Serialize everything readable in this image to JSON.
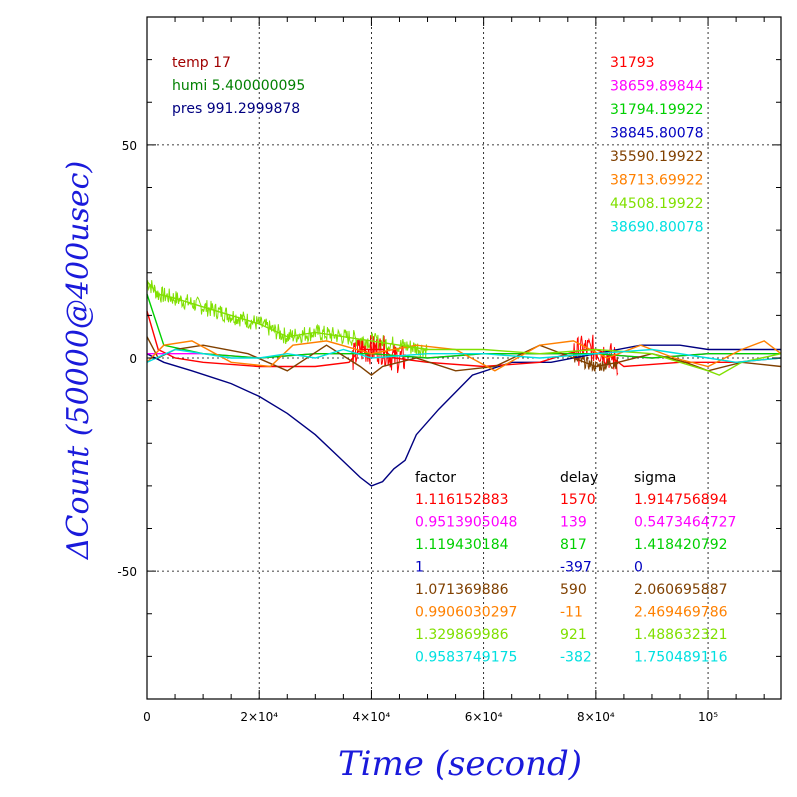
{
  "chart_data": {
    "type": "line",
    "xlabel": "Time (second)",
    "ylabel": "ΔCount (50000@400usec)",
    "xlim": [
      0,
      113000
    ],
    "ylim": [
      -80,
      80
    ],
    "x_ticks": [
      {
        "value": 0,
        "label": "0"
      },
      {
        "value": 20000,
        "label": "2×10⁴"
      },
      {
        "value": 40000,
        "label": "4×10⁴"
      },
      {
        "value": 60000,
        "label": "6×10⁴"
      },
      {
        "value": 80000,
        "label": "8×10⁴"
      },
      {
        "value": 100000,
        "label": "10⁵"
      }
    ],
    "y_ticks": [
      {
        "value": 50,
        "label": "50"
      },
      {
        "value": 0,
        "label": "0"
      },
      {
        "value": -50,
        "label": "-50"
      }
    ],
    "grid": true,
    "env_info": [
      {
        "text": "temp 17",
        "color": "#a00000"
      },
      {
        "text": "humi 5.400000095",
        "color": "#008000"
      },
      {
        "text": "pres 991.2999878",
        "color": "#000080"
      }
    ],
    "legend_values": [
      {
        "text": "31793",
        "color": "#ff0000"
      },
      {
        "text": "38659.89844",
        "color": "#ff00ff"
      },
      {
        "text": "31794.19922",
        "color": "#00d000"
      },
      {
        "text": "38845.80078",
        "color": "#0000c0"
      },
      {
        "text": "35590.19922",
        "color": "#804000"
      },
      {
        "text": "38713.69922",
        "color": "#ff8000"
      },
      {
        "text": "44508.19922",
        "color": "#80e000"
      },
      {
        "text": "38690.80078",
        "color": "#00e0e0"
      }
    ],
    "table": {
      "headers": [
        "factor",
        "delay",
        "sigma"
      ],
      "rows": [
        {
          "factor": "1.116152883",
          "delay": "1570",
          "sigma": "1.914756894",
          "color": "#ff0000"
        },
        {
          "factor": "0.9513905048",
          "delay": "139",
          "sigma": "0.5473464727",
          "color": "#ff00ff"
        },
        {
          "factor": "1.119430184",
          "delay": "817",
          "sigma": "1.418420792",
          "color": "#00d000"
        },
        {
          "factor": "1",
          "delay": "-397",
          "sigma": "0",
          "color": "#0000c0"
        },
        {
          "factor": "1.071369886",
          "delay": "590",
          "sigma": "2.060695887",
          "color": "#804000"
        },
        {
          "factor": "0.9906030297",
          "delay": "-11",
          "sigma": "2.469469786",
          "color": "#ff8000"
        },
        {
          "factor": "1.329869986",
          "delay": "921",
          "sigma": "1.488632321",
          "color": "#80e000"
        },
        {
          "factor": "0.9583749175",
          "delay": "-382",
          "sigma": "1.750489116",
          "color": "#00e0e0"
        }
      ]
    },
    "series": [
      {
        "color": "#000080",
        "x": [
          0,
          3000,
          8000,
          15000,
          20000,
          25000,
          30000,
          34000,
          38000,
          40000,
          42000,
          44000,
          46000,
          48000,
          52000,
          58000,
          65000,
          72000,
          80000,
          88000,
          95000,
          100000,
          108000,
          113000
        ],
        "y": [
          1,
          -1,
          -3,
          -6,
          -9,
          -13,
          -18,
          -23,
          -28,
          -30,
          -29,
          -26,
          -24,
          -18,
          -12,
          -4,
          -1,
          -1,
          1,
          3,
          3,
          2,
          2,
          2
        ]
      },
      {
        "color": "#ff0000",
        "x": [
          0,
          2000,
          5000,
          10000,
          20000,
          30000,
          36000,
          38000,
          42000,
          44000,
          50000,
          60000,
          70000,
          75000,
          78000,
          80000,
          82000,
          85000,
          95000,
          105000,
          113000
        ],
        "y": [
          11,
          2,
          0,
          -1,
          -2,
          -2,
          -1,
          2,
          2,
          0,
          -1,
          -2,
          -1,
          1,
          2,
          2,
          1,
          -2,
          -1,
          -1,
          0
        ]
      },
      {
        "color": "#ff00ff",
        "x": [
          0,
          10000,
          20000,
          30000,
          40000,
          50000,
          60000,
          70000,
          80000,
          90000,
          100000,
          113000
        ],
        "y": [
          1,
          1,
          0,
          1,
          1,
          0,
          1,
          1,
          1,
          0,
          1,
          1
        ]
      },
      {
        "color": "#00d000",
        "x": [
          0,
          3000,
          10000,
          20000,
          30000,
          40000,
          50000,
          60000,
          70000,
          80000,
          90000,
          100000,
          113000
        ],
        "y": [
          15,
          3,
          1,
          0,
          1,
          1,
          0,
          1,
          1,
          1,
          0,
          1,
          1
        ]
      },
      {
        "color": "#804000",
        "x": [
          0,
          2000,
          5000,
          10000,
          18000,
          25000,
          32000,
          38000,
          40000,
          42000,
          48000,
          55000,
          62000,
          70000,
          76000,
          80000,
          84000,
          90000,
          96000,
          100000,
          106000,
          113000
        ],
        "y": [
          5,
          0,
          2,
          3,
          1,
          -3,
          3,
          -2,
          -4,
          -2,
          0,
          -3,
          -2,
          3,
          0,
          -2,
          -1,
          1,
          -1,
          -3,
          -1,
          -2
        ]
      },
      {
        "color": "#ff8000",
        "x": [
          0,
          3000,
          8000,
          15000,
          22000,
          26000,
          32000,
          40000,
          48000,
          55000,
          62000,
          70000,
          76000,
          82000,
          88000,
          94000,
          100000,
          106000,
          110000,
          113000
        ],
        "y": [
          -1,
          3,
          4,
          -1,
          -2,
          3,
          4,
          1,
          3,
          2,
          -3,
          3,
          4,
          0,
          3,
          0,
          -2,
          2,
          4,
          1
        ]
      },
      {
        "color": "#80e000",
        "x": [
          0,
          2000,
          5000,
          10000,
          15000,
          20000,
          25000,
          30000,
          35000,
          40000,
          45000,
          50000,
          60000,
          70000,
          80000,
          90000,
          95000,
          100000,
          102000,
          106000,
          113000
        ],
        "y": [
          18,
          15,
          14,
          12,
          10,
          8,
          5,
          6,
          5,
          4,
          3,
          2,
          2,
          1,
          2,
          1,
          -1,
          -3,
          -4,
          -1,
          1
        ]
      },
      {
        "color": "#00e0e0",
        "x": [
          0,
          5000,
          10000,
          15000,
          20000,
          25000,
          30000,
          35000,
          40000,
          50000,
          60000,
          70000,
          80000,
          90000,
          100000,
          105000,
          113000
        ],
        "y": [
          -1,
          2,
          1,
          0,
          0,
          1,
          0,
          2,
          0,
          1,
          1,
          0,
          1,
          2,
          0,
          -1,
          0
        ]
      }
    ],
    "noise_bands": [
      {
        "color": "#80e000",
        "x0": 0,
        "x1": 50000,
        "amp": 2.0
      },
      {
        "color": "#ff0000",
        "x0": 36500,
        "x1": 46000,
        "amp": 3.5
      },
      {
        "color": "#ff0000",
        "x0": 76000,
        "x1": 84000,
        "amp": 3.5
      },
      {
        "color": "#804000",
        "x0": 76000,
        "x1": 84000,
        "amp": 1.5
      }
    ]
  }
}
